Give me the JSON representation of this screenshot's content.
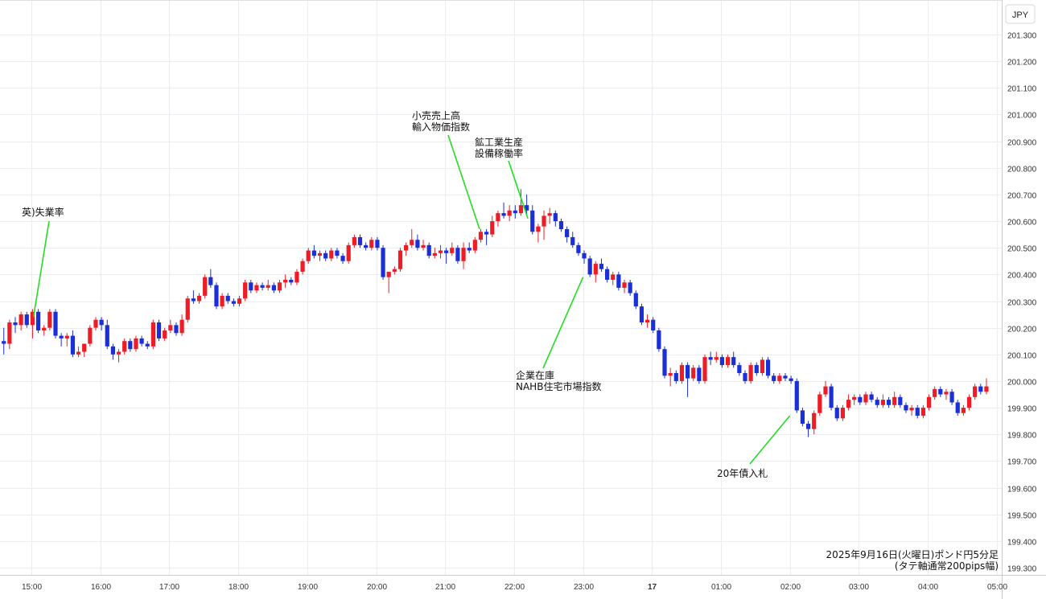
{
  "currency_label": "JPY",
  "caption": [
    "2025年9月16日(火曜日)ポンド円5分足",
    "(タテ軸通常200pips幅)"
  ],
  "colors": {
    "up": "#ee1c25",
    "down": "#1a2fd6",
    "annotation_line": "#22dd22",
    "grid": "#e9edf2",
    "axis_text": "#333333"
  },
  "chart_data": {
    "type": "candlestick",
    "title": "",
    "y_unit": "JPY",
    "ylim": [
      199.3,
      201.35
    ],
    "yticks": [
      "201.300",
      "201.200",
      "201.100",
      "201.000",
      "200.900",
      "200.800",
      "200.700",
      "200.600",
      "200.500",
      "200.400",
      "200.300",
      "200.200",
      "200.100",
      "200.000",
      "199.900",
      "199.800",
      "199.700",
      "199.600",
      "199.500",
      "199.400",
      "199.300"
    ],
    "x_range_hours": [
      14.6,
      29.05
    ],
    "xticks": [
      {
        "label": "15:00",
        "hour": 15
      },
      {
        "label": "16:00",
        "hour": 16
      },
      {
        "label": "17:00",
        "hour": 17
      },
      {
        "label": "18:00",
        "hour": 18
      },
      {
        "label": "19:00",
        "hour": 19
      },
      {
        "label": "20:00",
        "hour": 20
      },
      {
        "label": "21:00",
        "hour": 21
      },
      {
        "label": "22:00",
        "hour": 22
      },
      {
        "label": "23:00",
        "hour": 23
      },
      {
        "label": "17",
        "hour": 24,
        "bold": true
      },
      {
        "label": "01:00",
        "hour": 25
      },
      {
        "label": "02:00",
        "hour": 26
      },
      {
        "label": "03:00",
        "hour": 27
      },
      {
        "label": "04:00",
        "hour": 28
      },
      {
        "label": "05:00",
        "hour": 29
      }
    ],
    "candles_start_hour": 14.6,
    "candle_interval_minutes": 5,
    "candles": [
      [
        200.15,
        200.2,
        200.1,
        200.14
      ],
      [
        200.14,
        200.23,
        200.12,
        200.22
      ],
      [
        200.22,
        200.24,
        200.18,
        200.21
      ],
      [
        200.21,
        200.26,
        200.19,
        200.25
      ],
      [
        200.25,
        200.26,
        200.2,
        200.21
      ],
      [
        200.21,
        200.27,
        200.16,
        200.26
      ],
      [
        200.26,
        200.27,
        200.18,
        200.19
      ],
      [
        200.19,
        200.21,
        200.17,
        200.2
      ],
      [
        200.2,
        200.27,
        200.19,
        200.26
      ],
      [
        200.26,
        200.27,
        200.16,
        200.17
      ],
      [
        200.17,
        200.18,
        200.13,
        200.16
      ],
      [
        200.16,
        200.18,
        200.13,
        200.17
      ],
      [
        200.17,
        200.19,
        200.09,
        200.1
      ],
      [
        200.1,
        200.13,
        200.09,
        200.11
      ],
      [
        200.11,
        200.14,
        200.09,
        200.14
      ],
      [
        200.14,
        200.21,
        200.13,
        200.2
      ],
      [
        200.2,
        200.24,
        200.19,
        200.23
      ],
      [
        200.23,
        200.24,
        200.19,
        200.21
      ],
      [
        200.21,
        200.23,
        200.12,
        200.13
      ],
      [
        200.13,
        200.14,
        200.08,
        200.1
      ],
      [
        200.1,
        200.12,
        200.07,
        200.11
      ],
      [
        200.11,
        200.16,
        200.1,
        200.15
      ],
      [
        200.15,
        200.16,
        200.11,
        200.12
      ],
      [
        200.12,
        200.17,
        200.11,
        200.16
      ],
      [
        200.16,
        200.17,
        200.13,
        200.14
      ],
      [
        200.14,
        200.15,
        200.12,
        200.13
      ],
      [
        200.13,
        200.23,
        200.12,
        200.22
      ],
      [
        200.22,
        200.23,
        200.15,
        200.16
      ],
      [
        200.16,
        200.2,
        200.15,
        200.19
      ],
      [
        200.19,
        200.23,
        200.18,
        200.21
      ],
      [
        200.21,
        200.22,
        200.17,
        200.18
      ],
      [
        200.18,
        200.25,
        200.17,
        200.23
      ],
      [
        200.23,
        200.32,
        200.22,
        200.31
      ],
      [
        200.31,
        200.34,
        200.29,
        200.3
      ],
      [
        200.3,
        200.33,
        200.29,
        200.32
      ],
      [
        200.32,
        200.4,
        200.31,
        200.39
      ],
      [
        200.39,
        200.42,
        200.35,
        200.36
      ],
      [
        200.36,
        200.37,
        200.27,
        200.28
      ],
      [
        200.28,
        200.33,
        200.27,
        200.32
      ],
      [
        200.32,
        200.33,
        200.29,
        200.3
      ],
      [
        200.3,
        200.31,
        200.28,
        200.29
      ],
      [
        200.29,
        200.32,
        200.28,
        200.31
      ],
      [
        200.31,
        200.38,
        200.3,
        200.37
      ],
      [
        200.37,
        200.38,
        200.33,
        200.34
      ],
      [
        200.34,
        200.37,
        200.33,
        200.36
      ],
      [
        200.36,
        200.37,
        200.34,
        200.35
      ],
      [
        200.35,
        200.38,
        200.34,
        200.36
      ],
      [
        200.36,
        200.37,
        200.33,
        200.34
      ],
      [
        200.34,
        200.38,
        200.33,
        200.37
      ],
      [
        200.37,
        200.4,
        200.35,
        200.38
      ],
      [
        200.38,
        200.39,
        200.36,
        200.37
      ],
      [
        200.37,
        200.42,
        200.36,
        200.41
      ],
      [
        200.41,
        200.46,
        200.4,
        200.45
      ],
      [
        200.45,
        200.5,
        200.44,
        200.49
      ],
      [
        200.49,
        200.51,
        200.46,
        200.47
      ],
      [
        200.47,
        200.49,
        200.45,
        200.48
      ],
      [
        200.48,
        200.49,
        200.45,
        200.46
      ],
      [
        200.46,
        200.5,
        200.45,
        200.49
      ],
      [
        200.49,
        200.5,
        200.46,
        200.47
      ],
      [
        200.47,
        200.48,
        200.44,
        200.45
      ],
      [
        200.45,
        200.52,
        200.44,
        200.51
      ],
      [
        200.51,
        200.55,
        200.5,
        200.54
      ],
      [
        200.54,
        200.55,
        200.5,
        200.51
      ],
      [
        200.51,
        200.52,
        200.49,
        200.5
      ],
      [
        200.5,
        200.54,
        200.49,
        200.53
      ],
      [
        200.53,
        200.54,
        200.49,
        200.5
      ],
      [
        200.5,
        200.51,
        200.38,
        200.39
      ],
      [
        200.39,
        200.4,
        200.33,
        200.41
      ],
      [
        200.41,
        200.43,
        200.4,
        200.42
      ],
      [
        200.42,
        200.5,
        200.41,
        200.49
      ],
      [
        200.49,
        200.52,
        200.47,
        200.51
      ],
      [
        200.51,
        200.57,
        200.5,
        200.53
      ],
      [
        200.53,
        200.55,
        200.49,
        200.5
      ],
      [
        200.5,
        200.53,
        200.49,
        200.51
      ],
      [
        200.51,
        200.52,
        200.46,
        200.47
      ],
      [
        200.47,
        200.5,
        200.46,
        200.48
      ],
      [
        200.48,
        200.51,
        200.46,
        200.49
      ],
      [
        200.49,
        200.5,
        200.44,
        200.48
      ],
      [
        200.48,
        200.52,
        200.47,
        200.5
      ],
      [
        200.5,
        200.51,
        200.44,
        200.45
      ],
      [
        200.45,
        200.52,
        200.42,
        200.5
      ],
      [
        200.5,
        200.52,
        200.48,
        200.49
      ],
      [
        200.49,
        200.54,
        200.48,
        200.53
      ],
      [
        200.53,
        200.57,
        200.52,
        200.56
      ],
      [
        200.56,
        200.57,
        200.51,
        200.55
      ],
      [
        200.55,
        200.62,
        200.54,
        200.6
      ],
      [
        200.6,
        200.64,
        200.58,
        200.63
      ],
      [
        200.63,
        200.67,
        200.61,
        200.62
      ],
      [
        200.62,
        200.66,
        200.6,
        200.64
      ],
      [
        200.64,
        200.66,
        200.61,
        200.63
      ],
      [
        200.63,
        200.72,
        200.62,
        200.66
      ],
      [
        200.66,
        200.7,
        200.62,
        200.64
      ],
      [
        200.64,
        200.66,
        200.55,
        200.56
      ],
      [
        200.56,
        200.59,
        200.52,
        200.58
      ],
      [
        200.58,
        200.64,
        200.53,
        200.62
      ],
      [
        200.62,
        200.65,
        200.59,
        200.63
      ],
      [
        200.63,
        200.64,
        200.58,
        200.6
      ],
      [
        200.6,
        200.61,
        200.56,
        200.57
      ],
      [
        200.57,
        200.58,
        200.52,
        200.54
      ],
      [
        200.54,
        200.56,
        200.5,
        200.51
      ],
      [
        200.51,
        200.52,
        200.47,
        200.48
      ],
      [
        200.48,
        200.49,
        200.44,
        200.46
      ],
      [
        200.46,
        200.47,
        200.39,
        200.4
      ],
      [
        200.4,
        200.45,
        200.37,
        200.44
      ],
      [
        200.44,
        200.46,
        200.41,
        200.42
      ],
      [
        200.42,
        200.43,
        200.37,
        200.38
      ],
      [
        200.38,
        200.41,
        200.36,
        200.4
      ],
      [
        200.4,
        200.41,
        200.34,
        200.35
      ],
      [
        200.35,
        200.38,
        200.33,
        200.37
      ],
      [
        200.37,
        200.38,
        200.32,
        200.33
      ],
      [
        200.33,
        200.34,
        200.27,
        200.28
      ],
      [
        200.28,
        200.29,
        200.21,
        200.22
      ],
      [
        200.22,
        200.25,
        200.2,
        200.23
      ],
      [
        200.23,
        200.24,
        200.18,
        200.19
      ],
      [
        200.19,
        200.2,
        200.11,
        200.12
      ],
      [
        200.12,
        200.13,
        200.01,
        200.02
      ],
      [
        200.02,
        200.05,
        199.98,
        200.03
      ],
      [
        200.03,
        200.04,
        199.99,
        200.0
      ],
      [
        200.0,
        200.07,
        199.99,
        200.06
      ],
      [
        200.06,
        200.07,
        199.94,
        200.01
      ],
      [
        200.01,
        200.06,
        200.0,
        200.05
      ],
      [
        200.05,
        200.06,
        199.99,
        200.0
      ],
      [
        200.0,
        200.1,
        199.99,
        200.09
      ],
      [
        200.09,
        200.11,
        200.06,
        200.08
      ],
      [
        200.08,
        200.11,
        200.07,
        200.09
      ],
      [
        200.09,
        200.1,
        200.05,
        200.06
      ],
      [
        200.06,
        200.1,
        200.05,
        200.09
      ],
      [
        200.09,
        200.11,
        200.05,
        200.06
      ],
      [
        200.06,
        200.07,
        200.02,
        200.03
      ],
      [
        200.03,
        200.04,
        199.99,
        200.0
      ],
      [
        200.0,
        200.07,
        199.99,
        200.06
      ],
      [
        200.06,
        200.07,
        200.02,
        200.03
      ],
      [
        200.03,
        200.09,
        200.02,
        200.08
      ],
      [
        200.08,
        200.09,
        200.01,
        200.02
      ],
      [
        200.02,
        200.03,
        199.99,
        200.0
      ],
      [
        200.0,
        200.03,
        199.99,
        200.02
      ],
      [
        200.02,
        200.03,
        200.0,
        200.01
      ],
      [
        200.01,
        200.02,
        199.99,
        200.0
      ],
      [
        200.0,
        200.01,
        199.88,
        199.89
      ],
      [
        199.89,
        199.9,
        199.83,
        199.84
      ],
      [
        199.84,
        199.85,
        199.79,
        199.82
      ],
      [
        199.82,
        199.89,
        199.8,
        199.88
      ],
      [
        199.88,
        199.96,
        199.87,
        199.95
      ],
      [
        199.95,
        200.0,
        199.94,
        199.98
      ],
      [
        199.98,
        199.99,
        199.89,
        199.9
      ],
      [
        199.9,
        199.91,
        199.85,
        199.86
      ],
      [
        199.86,
        199.91,
        199.85,
        199.9
      ],
      [
        199.9,
        199.95,
        199.89,
        199.93
      ],
      [
        199.93,
        199.95,
        199.91,
        199.94
      ],
      [
        199.94,
        199.95,
        199.91,
        199.92
      ],
      [
        199.92,
        199.96,
        199.91,
        199.95
      ],
      [
        199.95,
        199.96,
        199.92,
        199.93
      ],
      [
        199.93,
        199.94,
        199.9,
        199.91
      ],
      [
        199.91,
        199.95,
        199.9,
        199.93
      ],
      [
        199.93,
        199.94,
        199.9,
        199.91
      ],
      [
        199.91,
        199.96,
        199.9,
        199.94
      ],
      [
        199.94,
        199.95,
        199.9,
        199.91
      ],
      [
        199.91,
        199.92,
        199.88,
        199.89
      ],
      [
        199.89,
        199.91,
        199.87,
        199.9
      ],
      [
        199.9,
        199.91,
        199.86,
        199.87
      ],
      [
        199.87,
        199.91,
        199.86,
        199.9
      ],
      [
        199.9,
        199.95,
        199.89,
        199.94
      ],
      [
        199.94,
        199.98,
        199.93,
        199.97
      ],
      [
        199.97,
        199.98,
        199.94,
        199.95
      ],
      [
        199.95,
        199.97,
        199.93,
        199.96
      ],
      [
        199.96,
        199.97,
        199.91,
        199.92
      ],
      [
        199.92,
        199.93,
        199.87,
        199.88
      ],
      [
        199.88,
        199.91,
        199.87,
        199.9
      ],
      [
        199.9,
        199.95,
        199.89,
        199.94
      ],
      [
        199.94,
        199.99,
        199.93,
        199.98
      ],
      [
        199.98,
        199.99,
        199.95,
        199.96
      ],
      [
        199.96,
        200.01,
        199.95,
        199.98
      ]
    ],
    "annotations": [
      {
        "lines": [
          "英)失業率"
        ],
        "hour": 15.03,
        "price": 200.24
      },
      {
        "lines": [
          "小売売上高",
          "輸入物価指数"
        ],
        "hour": 21.5,
        "price": 200.57
      },
      {
        "lines": [
          "鉱工業生産",
          "設備稼働率"
        ],
        "hour": 22.2,
        "price": 200.61
      },
      {
        "lines": [
          "企業在庫",
          "NAHB住宅市場指数"
        ],
        "hour": 23.0,
        "price": 200.39
      },
      {
        "lines": [
          "20年債入札"
        ],
        "hour": 26.0,
        "price": 199.87
      }
    ]
  }
}
